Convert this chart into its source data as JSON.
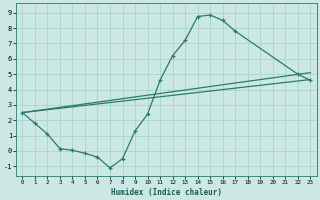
{
  "xlabel": "Humidex (Indice chaleur)",
  "bg_color": "#cce8e4",
  "grid_color": "#aad4cf",
  "line_color": "#2a7a6e",
  "xlim": [
    -0.5,
    23.5
  ],
  "ylim": [
    -1.6,
    9.6
  ],
  "xticks": [
    0,
    1,
    2,
    3,
    4,
    5,
    6,
    7,
    8,
    9,
    10,
    11,
    12,
    13,
    14,
    15,
    16,
    17,
    18,
    19,
    20,
    21,
    22,
    23
  ],
  "yticks": [
    -1,
    0,
    1,
    2,
    3,
    4,
    5,
    6,
    7,
    8,
    9
  ],
  "line1_x": [
    0,
    1,
    2,
    3,
    4,
    5,
    6,
    7,
    8,
    9,
    10,
    11,
    12,
    13,
    14,
    15,
    16,
    17,
    22,
    23
  ],
  "line1_y": [
    2.5,
    1.8,
    1.1,
    0.15,
    0.05,
    -0.15,
    -0.4,
    -1.1,
    -0.5,
    1.3,
    2.4,
    4.6,
    6.2,
    7.2,
    8.75,
    8.85,
    8.5,
    7.8,
    5.0,
    4.6
  ],
  "line2_x": [
    0,
    23
  ],
  "line2_y": [
    2.5,
    5.1
  ],
  "line3_x": [
    0,
    23
  ],
  "line3_y": [
    2.5,
    4.65
  ]
}
